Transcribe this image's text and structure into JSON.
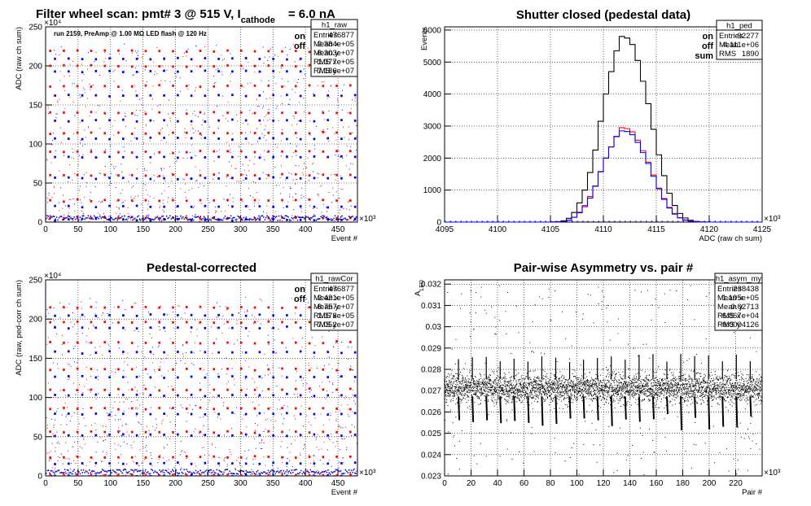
{
  "page_title": {
    "prefix": "Filter wheel scan: pmt#   3 @   515 V, I",
    "subscript": "cathode",
    "suffix": "= 6.0 nA"
  },
  "chart_data": [
    {
      "id": "raw",
      "type": "scatter",
      "title": "",
      "annotation": "run 2159, PreAmp @ 1.00 MΩ   LED flash @  120 Hz",
      "xlabel": "Event #",
      "ylabel": "ADC (raw ch sum)",
      "xlim": [
        0,
        480000
      ],
      "ylim": [
        0,
        2500000
      ],
      "x_ticks": [
        0,
        50,
        100,
        150,
        200,
        250,
        300,
        350,
        400,
        450
      ],
      "y_ticks": [
        0,
        50,
        100,
        150,
        200,
        250
      ],
      "x_exponent": "×10³",
      "y_exponent": "×10⁴",
      "grid": true,
      "legend_labels": [
        {
          "text": "on",
          "color": "#ff0000"
        },
        {
          "text": "off",
          "color": "#0000ff"
        }
      ],
      "stats": {
        "name": "h1_raw",
        "rows": [
          {
            "label": "Entries",
            "value": "476877"
          },
          {
            "label": "Mean x",
            "value": "2.384e+05"
          },
          {
            "label": "Mean y",
            "value": "8.303e+07"
          },
          {
            "label": "RMS x",
            "value": "1.377e+05"
          },
          {
            "label": "RMS y",
            "value": "7.186e+07"
          }
        ]
      },
      "series": [
        {
          "name": "on",
          "color": "#ff0000",
          "period": 21000,
          "levels": [
            2190000,
            2000000,
            1740000,
            1400000,
            1140000,
            900000,
            600000,
            280000,
            50000
          ]
        },
        {
          "name": "off",
          "color": "#0000ff",
          "period": 21000,
          "levels": [
            2090000,
            1930000,
            1620000,
            1300000,
            1070000,
            830000,
            560000,
            200000,
            30000
          ]
        }
      ]
    },
    {
      "id": "ped",
      "type": "histogram",
      "title": "Shutter closed (pedestal data)",
      "xlabel": "ADC (raw ch sum)",
      "ylabel": "Events",
      "xlim": [
        4095000,
        4125000
      ],
      "ylim": [
        0,
        6100
      ],
      "x_ticks": [
        4095,
        4100,
        4105,
        4110,
        4115,
        4120,
        4125
      ],
      "y_ticks": [
        0,
        1000,
        2000,
        3000,
        4000,
        5000,
        6000
      ],
      "x_exponent": "×10³",
      "grid": true,
      "legend_labels": [
        {
          "text": "on",
          "color": "#ff0000"
        },
        {
          "text": "off",
          "color": "#0000ff"
        },
        {
          "text": "sum",
          "color": "#000000"
        }
      ],
      "stats": {
        "name": "h1_ped",
        "rows": [
          {
            "label": "Entries",
            "value": "92277"
          },
          {
            "label": "Mean",
            "value": "4.111e+06"
          },
          {
            "label": "RMS",
            "value": "1890"
          }
        ]
      },
      "bins": {
        "start": 4095000,
        "width": 500
      },
      "series": [
        {
          "name": "sum",
          "color": "#000000",
          "values": [
            0,
            0,
            0,
            0,
            0,
            0,
            0,
            0,
            0,
            0,
            0,
            0,
            0,
            0,
            0,
            0,
            0,
            0,
            0,
            0,
            5,
            15,
            40,
            120,
            300,
            600,
            1000,
            1550,
            2250,
            3150,
            4000,
            4700,
            5350,
            5800,
            5750,
            5550,
            5050,
            4400,
            3700,
            2900,
            2100,
            1450,
            900,
            520,
            270,
            130,
            55,
            20,
            6,
            1,
            0,
            0,
            0,
            0,
            0,
            0,
            0,
            0,
            0,
            0
          ]
        },
        {
          "name": "on",
          "color": "#ff0000",
          "values": [
            0,
            0,
            0,
            0,
            0,
            0,
            0,
            0,
            0,
            0,
            0,
            0,
            0,
            0,
            0,
            0,
            0,
            0,
            0,
            0,
            3,
            8,
            20,
            60,
            150,
            310,
            520,
            800,
            1130,
            1580,
            2000,
            2350,
            2680,
            2950,
            2920,
            2820,
            2560,
            2230,
            1870,
            1470,
            1060,
            740,
            460,
            270,
            140,
            70,
            30,
            10,
            3,
            1,
            0,
            0,
            0,
            0,
            0,
            0,
            0,
            0,
            0,
            0
          ]
        },
        {
          "name": "off",
          "color": "#0000ff",
          "values": [
            0,
            0,
            0,
            0,
            0,
            0,
            0,
            0,
            0,
            0,
            0,
            0,
            0,
            0,
            0,
            0,
            0,
            0,
            0,
            0,
            2,
            7,
            20,
            60,
            150,
            290,
            480,
            750,
            1120,
            1570,
            2000,
            2350,
            2670,
            2850,
            2830,
            2730,
            2490,
            2170,
            1830,
            1430,
            1040,
            710,
            440,
            250,
            130,
            60,
            25,
            10,
            3,
            0,
            0,
            0,
            0,
            0,
            0,
            0,
            0,
            0,
            0,
            0
          ]
        }
      ]
    },
    {
      "id": "rawCor",
      "type": "scatter",
      "title": "Pedestal-corrected",
      "xlabel": "Event #",
      "ylabel": "ADC (raw, ped-corr ch sum)",
      "xlim": [
        0,
        480000
      ],
      "ylim": [
        0,
        2500000
      ],
      "x_ticks": [
        0,
        50,
        100,
        150,
        200,
        250,
        300,
        350,
        400,
        450
      ],
      "y_ticks": [
        0,
        50,
        100,
        150,
        200,
        250
      ],
      "x_exponent": "×10³",
      "y_exponent": "×10⁴",
      "grid": true,
      "legend_labels": [
        {
          "text": "on",
          "color": "#ff0000"
        },
        {
          "text": "off",
          "color": "#0000ff"
        }
      ],
      "stats": {
        "name": "h1_rawCor",
        "rows": [
          {
            "label": "Entries",
            "value": "476877"
          },
          {
            "label": "Mean x",
            "value": "2.421e+05"
          },
          {
            "label": "Mean y",
            "value": "8.757e+07"
          },
          {
            "label": "RMS x",
            "value": "1.378e+05"
          },
          {
            "label": "RMS y",
            "value": "7.052e+07"
          }
        ]
      },
      "series": [
        {
          "name": "on",
          "color": "#ff0000",
          "period": 21000,
          "levels": [
            2150000,
            1960000,
            1700000,
            1360000,
            1100000,
            860000,
            560000,
            240000,
            10000
          ]
        },
        {
          "name": "off",
          "color": "#0000ff",
          "period": 21000,
          "levels": [
            2050000,
            1890000,
            1580000,
            1260000,
            1030000,
            790000,
            520000,
            160000,
            0
          ]
        }
      ]
    },
    {
      "id": "asym",
      "type": "scatter",
      "title": "Pair-wise Asymmetry vs. pair #",
      "xlabel": "Pair #",
      "ylabel": "A",
      "ylabel_sub": "LED",
      "xlim": [
        0,
        240000
      ],
      "ylim": [
        0.023,
        0.0322
      ],
      "x_ticks": [
        0,
        20,
        40,
        60,
        80,
        100,
        120,
        140,
        160,
        180,
        200,
        220
      ],
      "y_ticks": [
        0.023,
        0.024,
        0.025,
        0.026,
        0.027,
        0.028,
        0.029,
        0.03,
        0.031,
        0.032
      ],
      "x_exponent": "×10³",
      "grid": true,
      "stats": {
        "name": "h1_asym_my",
        "rows": [
          {
            "label": "Entries",
            "value": "238438"
          },
          {
            "label": "Mean x",
            "value": "1.195e+05"
          },
          {
            "label": "Mean y",
            "value": "0.02713"
          },
          {
            "label": "RMS x",
            "value": "6.867e+04"
          },
          {
            "label": "RMS y",
            "value": "0.0004126"
          }
        ]
      },
      "series": [
        {
          "name": "",
          "color": "#000000",
          "band_center": 0.02713,
          "band_halfwidth": 0.0006,
          "dip_period": 10500,
          "dip_depth": 0.0255
        }
      ]
    }
  ]
}
